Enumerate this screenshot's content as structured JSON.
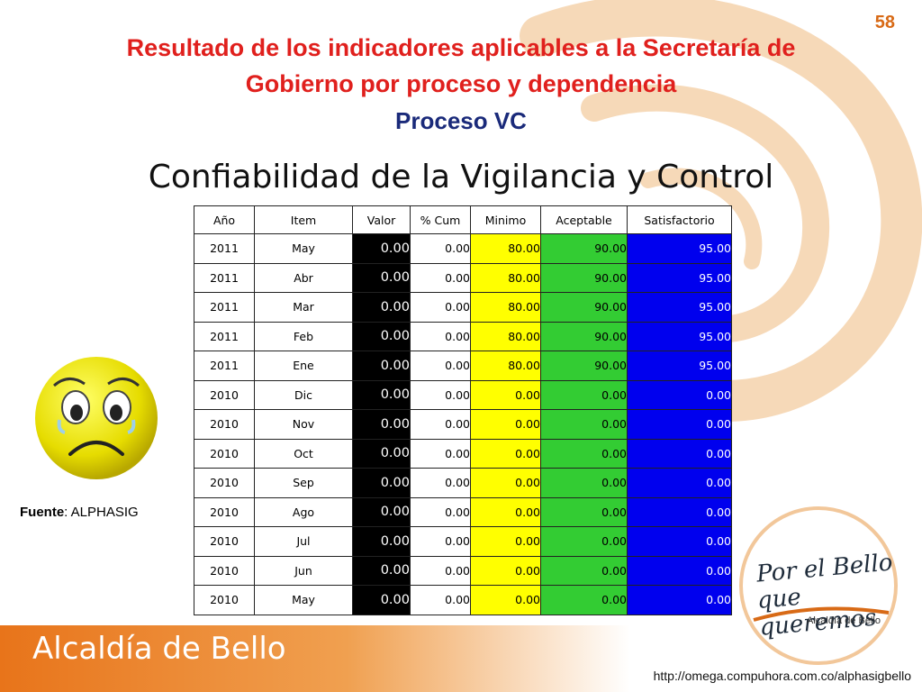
{
  "header": {
    "page_number": "58",
    "title_line1": "Resultado de los indicadores aplicables a la Secretaría de",
    "title_line2": "Gobierno por proceso y dependencia",
    "subtitle": "Proceso VC"
  },
  "main": {
    "heading": "Confiabilidad de la Vigilancia y Control",
    "table": {
      "columns": [
        "Año",
        "Item",
        "Valor",
        "% Cum",
        "Minimo",
        "Aceptable",
        "Satisfactorio"
      ],
      "rows": [
        [
          "2011",
          "May",
          "0.00",
          "0.00",
          "80.00",
          "90.00",
          "95.00"
        ],
        [
          "2011",
          "Abr",
          "0.00",
          "0.00",
          "80.00",
          "90.00",
          "95.00"
        ],
        [
          "2011",
          "Mar",
          "0.00",
          "0.00",
          "80.00",
          "90.00",
          "95.00"
        ],
        [
          "2011",
          "Feb",
          "0.00",
          "0.00",
          "80.00",
          "90.00",
          "95.00"
        ],
        [
          "2011",
          "Ene",
          "0.00",
          "0.00",
          "80.00",
          "90.00",
          "95.00"
        ],
        [
          "2010",
          "Dic",
          "0.00",
          "0.00",
          "0.00",
          "0.00",
          "0.00"
        ],
        [
          "2010",
          "Nov",
          "0.00",
          "0.00",
          "0.00",
          "0.00",
          "0.00"
        ],
        [
          "2010",
          "Oct",
          "0.00",
          "0.00",
          "0.00",
          "0.00",
          "0.00"
        ],
        [
          "2010",
          "Sep",
          "0.00",
          "0.00",
          "0.00",
          "0.00",
          "0.00"
        ],
        [
          "2010",
          "Ago",
          "0.00",
          "0.00",
          "0.00",
          "0.00",
          "0.00"
        ],
        [
          "2010",
          "Jul",
          "0.00",
          "0.00",
          "0.00",
          "0.00",
          "0.00"
        ],
        [
          "2010",
          "Jun",
          "0.00",
          "0.00",
          "0.00",
          "0.00",
          "0.00"
        ],
        [
          "2010",
          "May",
          "0.00",
          "0.00",
          "0.00",
          "0.00",
          "0.00"
        ]
      ]
    }
  },
  "side": {
    "indicator_icon": "sad-face-icon",
    "source_label": "Fuente",
    "source_value": ": ALPHASIG"
  },
  "footer": {
    "brand": "Alcaldía de Bello",
    "url": "http://omega.compuhora.com.co/alphasigbello",
    "logo_line1": "Por el Bello",
    "logo_line2": "que queremos",
    "logo_line3": "Alcaldía de Bello"
  },
  "colors": {
    "title": "#e0201d",
    "subtitle": "#1a2a7a",
    "accent_orange": "#e87a1e",
    "minimo": "#ffff00",
    "aceptable": "#33cc33",
    "satisfactorio": "#0000ee",
    "valor": "#000000"
  }
}
